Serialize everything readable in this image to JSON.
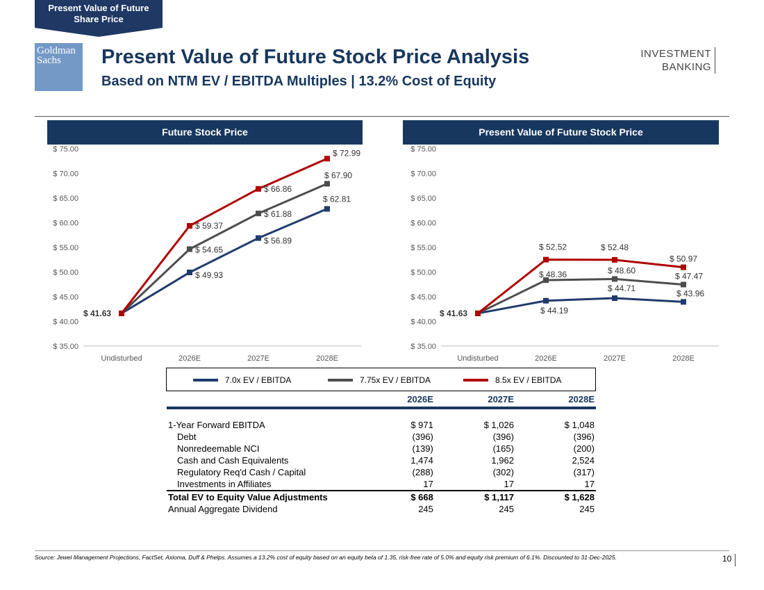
{
  "section_tab": "Present Value of Future Share Price",
  "logo": {
    "line1": "Goldman",
    "line2": "Sachs"
  },
  "header": {
    "title": "Present Value of Future Stock Price Analysis",
    "subtitle": "Based on NTM EV / EBITDA Multiples | 13.2% Cost of Equity",
    "division_line1": "INVESTMENT",
    "division_line2": "BANKING"
  },
  "colors": {
    "navy": "#17375e",
    "blue_series": "#1f3a6e",
    "gray_series": "#4d4d4d",
    "red_series": "#b00000"
  },
  "chart_data": [
    {
      "type": "line",
      "title": "Future Stock Price",
      "categories": [
        "Undisturbed",
        "2026E",
        "2027E",
        "2028E"
      ],
      "ylim": [
        35,
        75
      ],
      "yticks": [
        "$ 35.00",
        "$ 40.00",
        "$ 45.00",
        "$ 50.00",
        "$ 55.00",
        "$ 60.00",
        "$ 65.00",
        "$ 70.00",
        "$ 75.00"
      ],
      "series": [
        {
          "name": "7.0x EV / EBITDA",
          "values": [
            41.63,
            49.93,
            56.89,
            62.81
          ],
          "labels": [
            "$ 41.63",
            "$ 49.93",
            "$ 56.89",
            "$ 62.81"
          ]
        },
        {
          "name": "7.75x EV / EBITDA",
          "values": [
            41.63,
            54.65,
            61.88,
            67.9
          ],
          "labels": [
            "",
            "$ 54.65",
            "$ 61.88",
            "$ 67.90"
          ]
        },
        {
          "name": "8.5x EV / EBITDA",
          "values": [
            41.63,
            59.37,
            66.86,
            72.99
          ],
          "labels": [
            "",
            "$ 59.37",
            "$ 66.86",
            "$ 72.99"
          ]
        }
      ]
    },
    {
      "type": "line",
      "title": "Present Value of Future Stock Price",
      "categories": [
        "Undisturbed",
        "2026E",
        "2027E",
        "2028E"
      ],
      "ylim": [
        35,
        75
      ],
      "yticks": [
        "$ 35.00",
        "$ 40.00",
        "$ 45.00",
        "$ 50.00",
        "$ 55.00",
        "$ 60.00",
        "$ 65.00",
        "$ 70.00",
        "$ 75.00"
      ],
      "series": [
        {
          "name": "7.0x EV / EBITDA",
          "values": [
            41.63,
            44.19,
            44.71,
            43.96
          ],
          "labels": [
            "$ 41.63",
            "$ 44.19",
            "$ 44.71",
            "$ 43.96"
          ]
        },
        {
          "name": "7.75x EV / EBITDA",
          "values": [
            41.63,
            48.36,
            48.6,
            47.47
          ],
          "labels": [
            "",
            "$ 48.36",
            "$ 48.60",
            "$ 47.47"
          ]
        },
        {
          "name": "8.5x EV / EBITDA",
          "values": [
            41.63,
            52.52,
            52.48,
            50.97
          ],
          "labels": [
            "",
            "$ 52.52",
            "$ 52.48",
            "$ 50.97"
          ]
        }
      ]
    }
  ],
  "legend": [
    "7.0x EV / EBITDA",
    "7.75x EV / EBITDA",
    "8.5x EV / EBITDA"
  ],
  "table": {
    "columns": [
      "2026E",
      "2027E",
      "2028E"
    ],
    "rows": [
      {
        "label": "1-Year Forward EBITDA",
        "values": [
          "$ 971",
          "$ 1,026",
          "$ 1,048"
        ]
      },
      {
        "label": "Debt",
        "values": [
          "(396)",
          "(396)",
          "(396)"
        ]
      },
      {
        "label": "Nonredeemable NCI",
        "values": [
          "(139)",
          "(165)",
          "(200)"
        ]
      },
      {
        "label": "Cash and Cash Equivalents",
        "values": [
          "1,474",
          "1,962",
          "2,524"
        ]
      },
      {
        "label": "Regulatory Req'd Cash / Capital",
        "values": [
          "(288)",
          "(302)",
          "(317)"
        ]
      },
      {
        "label": "Investments in Affiliates",
        "values": [
          "17",
          "17",
          "17"
        ]
      },
      {
        "label": "Total EV to Equity Value Adjustments",
        "values": [
          "$ 668",
          "$ 1,117",
          "$ 1,628"
        ]
      },
      {
        "label": "Annual Aggregate Dividend",
        "values": [
          "245",
          "245",
          "245"
        ]
      }
    ]
  },
  "footer": {
    "source": "Source: Jewel Management Projections, FactSet, Axioma, Duff & Phelps. Assumes a 13.2% cost of equity based on an equity beta of 1.35, risk-free rate of 5.0% and equity risk premium of 6.1%. Discounted to 31-Dec-2025.",
    "page_number": "10"
  }
}
